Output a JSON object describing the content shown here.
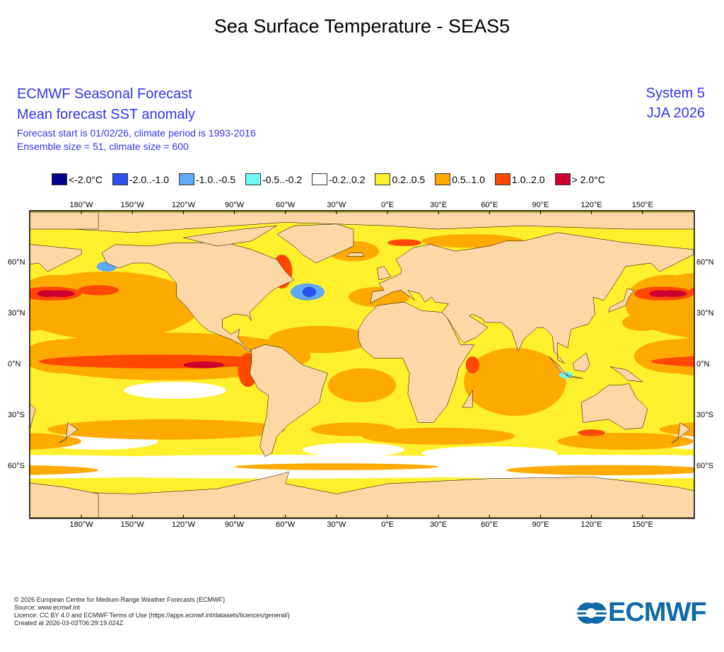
{
  "title": "Sea Surface Temperature - SEAS5",
  "header": {
    "line1": "ECMWF Seasonal Forecast",
    "line2": "Mean forecast SST anomaly",
    "line3": "Forecast start is 01/02/26, climate period is 1993-2016",
    "line4": "Ensemble size = 51, climate size = 600",
    "system": "System 5",
    "season": "JJA 2026"
  },
  "legend": [
    {
      "label": "<-2.0°C",
      "color": "#000090"
    },
    {
      "label": "-2.0..-1.0",
      "color": "#2a50f0"
    },
    {
      "label": "-1.0..-0.5",
      "color": "#60a8f8"
    },
    {
      "label": "-0.5..-0.2",
      "color": "#70f8f8"
    },
    {
      "label": "-0.2..0.2",
      "color": "#ffffff"
    },
    {
      "label": "0.2..0.5",
      "color": "#fff02e"
    },
    {
      "label": "0.5..1.0",
      "color": "#ffaa00"
    },
    {
      "label": "1.0..2.0",
      "color": "#ff4800"
    },
    {
      "label": "> 2.0°C",
      "color": "#cc0030"
    }
  ],
  "map": {
    "land_color": "#fdd8a6",
    "lon_labels": [
      "180°W",
      "150°W",
      "120°W",
      "90°W",
      "60°W",
      "30°W",
      "0°E",
      "30°E",
      "60°E",
      "90°E",
      "120°E",
      "150°E"
    ],
    "lat_labels": [
      "60°N",
      "30°N",
      "0°N",
      "30°S",
      "60°S"
    ]
  },
  "footer": [
    "© 2026 European Centre for Medium-Range Weather Forecasts (ECMWF)",
    "Source: www.ecmwf.int",
    "Licence: CC BY 4.0 and ECMWF Terms of Use (https://apps.ecmwf.int/datasets/licences/general/)",
    "Created at 2026-03-03T06:29:19.024Z"
  ],
  "logo": {
    "text": "ECMWF",
    "color": "#0f6aa8"
  }
}
